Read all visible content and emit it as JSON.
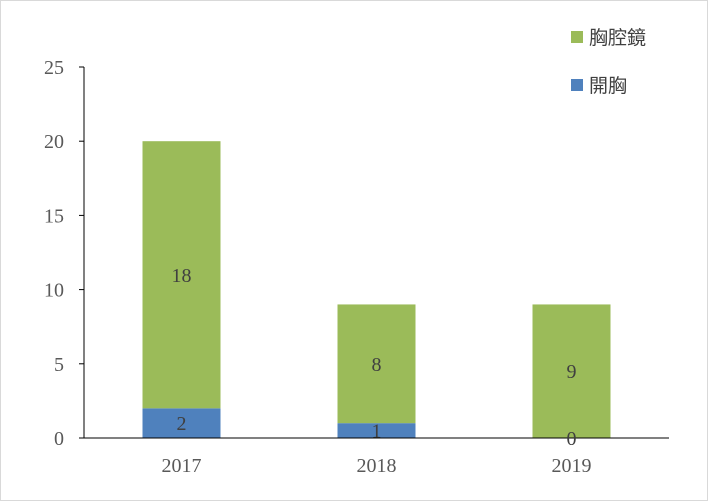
{
  "chart_data": {
    "type": "bar",
    "stacked": true,
    "categories": [
      "2017",
      "2018",
      "2019"
    ],
    "series": [
      {
        "name": "開胸",
        "values": [
          2,
          1,
          0
        ],
        "color": "#4f81bd"
      },
      {
        "name": "胸腔鏡",
        "values": [
          18,
          8,
          9
        ],
        "color": "#9bbb59"
      }
    ],
    "ylim": [
      0,
      25
    ],
    "yticks": [
      0,
      5,
      10,
      15,
      20,
      25
    ],
    "data_labels": [
      [
        "2",
        "1",
        "0"
      ],
      [
        "18",
        "8",
        "9"
      ]
    ],
    "legend_order": [
      "胸腔鏡",
      "開胸"
    ],
    "legend_position": "top-right",
    "grid": false,
    "axis_color": "#000000"
  }
}
